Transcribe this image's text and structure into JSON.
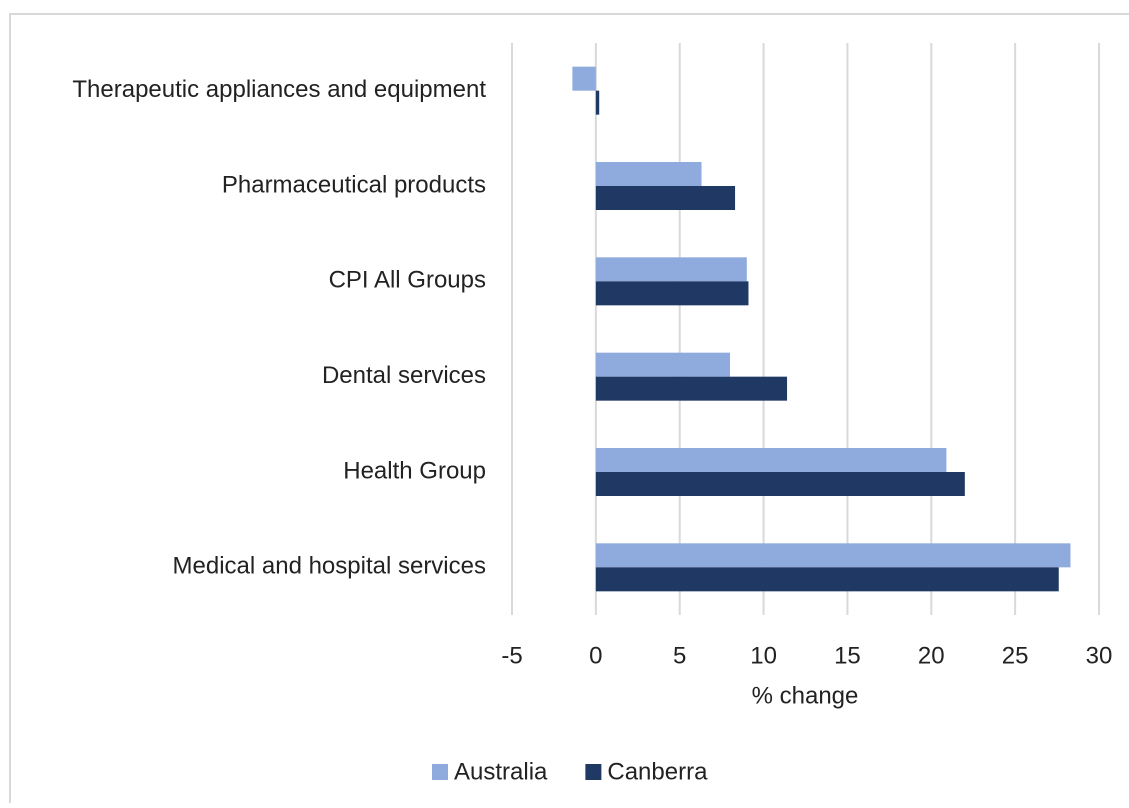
{
  "chart_data": {
    "type": "hbar",
    "categories": [
      "Therapeutic appliances and equipment",
      "Pharmaceutical products",
      "CPI All Groups",
      "Dental services",
      "Health Group",
      "Medical and hospital services"
    ],
    "series": [
      {
        "name": "Australia",
        "color": "#8faadc",
        "values": [
          -1.4,
          6.3,
          9.0,
          8.0,
          20.9,
          28.3
        ]
      },
      {
        "name": "Canberra",
        "color": "#203864",
        "values": [
          0.2,
          8.3,
          9.1,
          11.4,
          22.0,
          27.6
        ]
      }
    ],
    "xlabel": "% change",
    "xlim": [
      -5,
      30
    ],
    "xticks": [
      -5,
      0,
      5,
      10,
      15,
      20,
      25,
      30
    ],
    "grid": true,
    "legend": "bottom"
  }
}
